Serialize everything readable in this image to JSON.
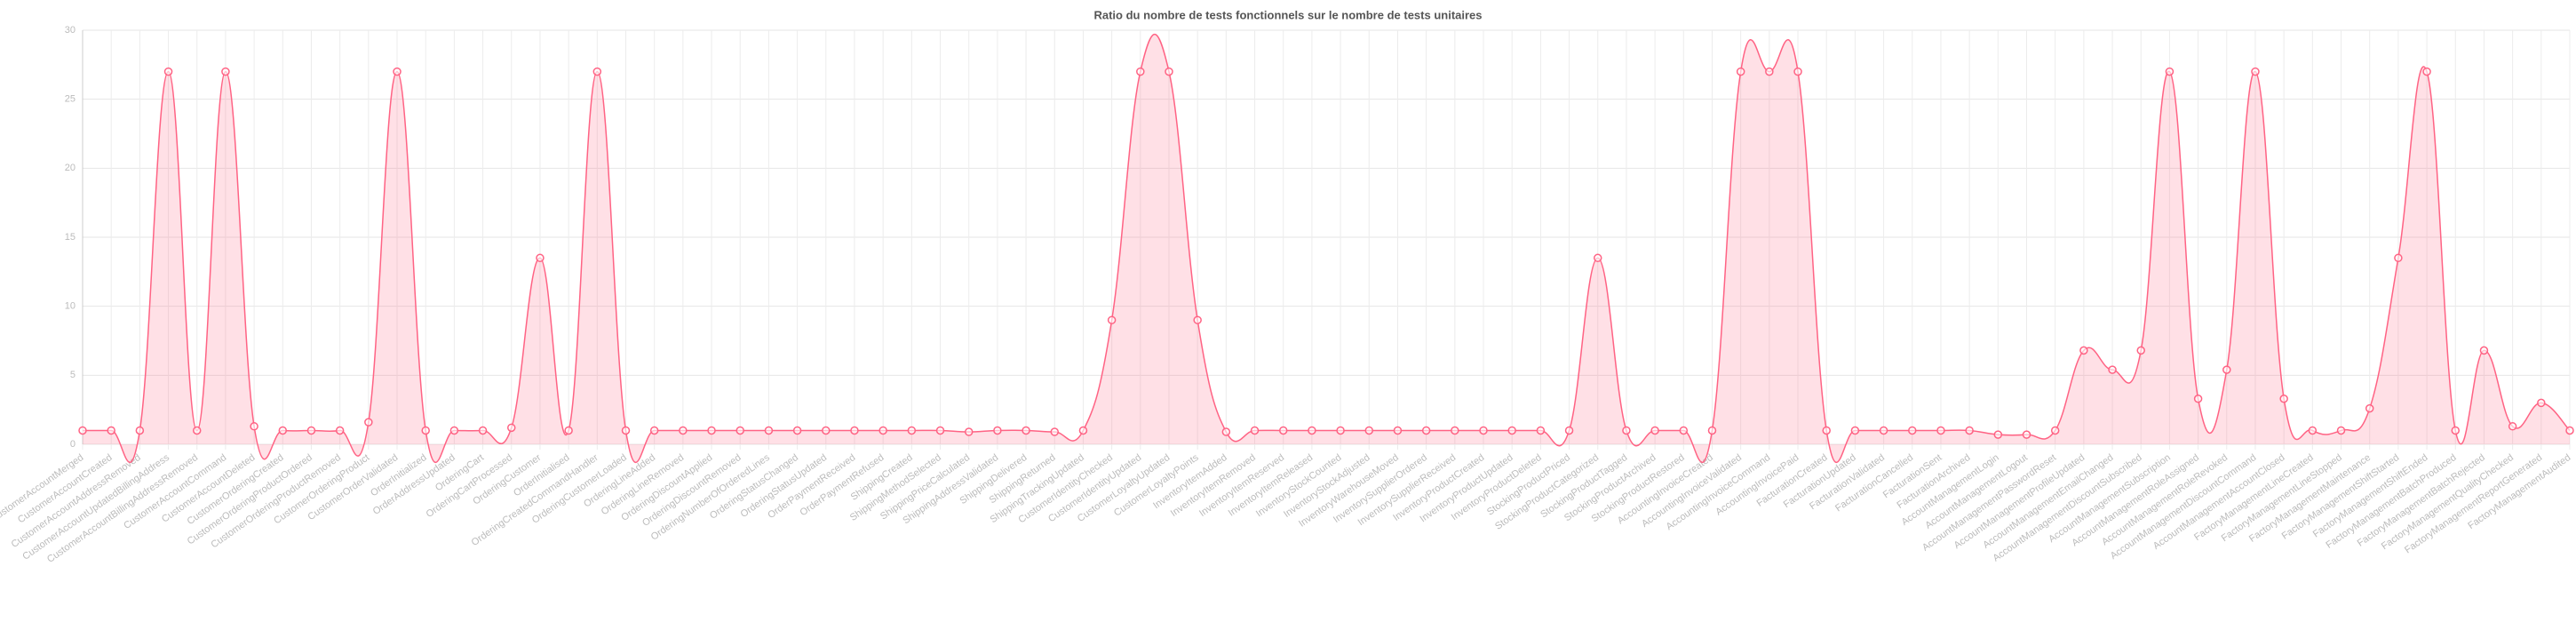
{
  "chart_data": {
    "type": "line",
    "title": "Ratio du nombre de tests fonctionnels sur le nombre de tests unitaires",
    "categories": [
      "CustomerAccountMerged",
      "CustomerAccountCreated",
      "CustomerAccountAddressRemoved",
      "CustomerAccountUpdatedBillingAddress",
      "CustomerAccountBillingAddressRemoved",
      "CustomerAccountCommand",
      "CustomerAccountDeleted",
      "CustomerOrderingCreated",
      "CustomerOrderingProductOrdered",
      "CustomerOrderingProductRemoved",
      "CustomerOrderingProduct",
      "CustomerOrderValidated",
      "OrderInitialized",
      "OrderAddressUpdated",
      "OrderingCart",
      "OrderingCartProcessed",
      "OrderingCustomer",
      "OrderInitialised",
      "OrderingCreatedCommandHandler",
      "OrderingCustomerLoaded",
      "OrderingLineAdded",
      "OrderingLineRemoved",
      "OrderingDiscountApplied",
      "OrderingDiscountRemoved",
      "OrderingNumberOfOrderedLines",
      "OrderingStatusChanged",
      "OrderingStatusUpdated",
      "OrderPaymentReceived",
      "OrderPaymentRefused",
      "ShippingCreated",
      "ShippingMethodSelected",
      "ShippingPriceCalculated",
      "ShippingAddressValidated",
      "ShippingDelivered",
      "ShippingReturned",
      "ShippingTrackingUpdated",
      "CustomerIdentityChecked",
      "CustomerIdentityUpdated",
      "CustomerLoyaltyUpdated",
      "CustomerLoyaltyPoints",
      "InventoryItemAdded",
      "InventoryItemRemoved",
      "InventoryItemReserved",
      "InventoryItemReleased",
      "InventoryStockCounted",
      "InventoryStockAdjusted",
      "InventoryWarehouseMoved",
      "InventorySupplierOrdered",
      "InventorySupplierReceived",
      "InventoryProductCreated",
      "InventoryProductUpdated",
      "InventoryProductDeleted",
      "StockingProductPriced",
      "StockingProductCategorized",
      "StockingProductTagged",
      "StockingProductArchived",
      "StockingProductRestored",
      "AccountingInvoiceCreated",
      "AccountingInvoiceValidated",
      "AccountingInvoiceCommand",
      "AccountingInvoicePaid",
      "FacturationCreated",
      "FacturationUpdated",
      "FacturationValidated",
      "FacturationCancelled",
      "FacturationSent",
      "FacturationArchived",
      "AccountManagementLogin",
      "AccountManagementLogout",
      "AccountManagementPasswordReset",
      "AccountManagementProfileUpdated",
      "AccountManagementEmailChanged",
      "AccountManagementDiscountSubscribed",
      "AccountManagementSubscription",
      "AccountManagementRoleAssigned",
      "AccountManagementRoleRevoked",
      "AccountManagementDiscountCommand",
      "AccountManagementAccountClosed",
      "FactoryManagementLineCreated",
      "FactoryManagementLineStopped",
      "FactoryManagementMaintenance",
      "FactoryManagementShiftStarted",
      "FactoryManagementShiftEnded",
      "FactoryManagementBatchProduced",
      "FactoryManagementBatchRejected",
      "FactoryManagementQualityChecked",
      "FactoryManagementReportGenerated",
      "FactoryManagementAudited"
    ],
    "values": [
      1,
      1,
      1,
      27,
      1,
      27,
      1.3,
      1,
      1,
      1,
      1.6,
      27,
      1,
      1,
      1,
      1.2,
      13.5,
      1,
      27,
      1,
      1,
      1,
      1,
      1,
      1,
      1,
      1,
      1,
      1,
      1,
      1,
      0.9,
      1,
      1,
      0.9,
      1,
      9,
      27,
      27,
      9,
      0.9,
      1,
      1,
      1,
      1,
      1,
      1,
      1,
      1,
      1,
      1,
      1,
      1,
      13.5,
      1,
      1,
      1,
      1,
      27,
      27,
      27,
      1,
      1,
      1,
      1,
      1,
      1,
      0.7,
      0.7,
      1,
      6.8,
      5.4,
      6.8,
      27,
      3.3,
      5.4,
      27,
      3.3,
      1,
      1,
      2.6,
      13.5,
      27,
      1,
      6.8,
      1.3,
      3,
      1
    ],
    "color": "#ff6384",
    "ylim": [
      0,
      30
    ],
    "yticks": [
      0,
      5,
      10,
      15,
      20,
      25,
      30
    ],
    "grid": true
  }
}
